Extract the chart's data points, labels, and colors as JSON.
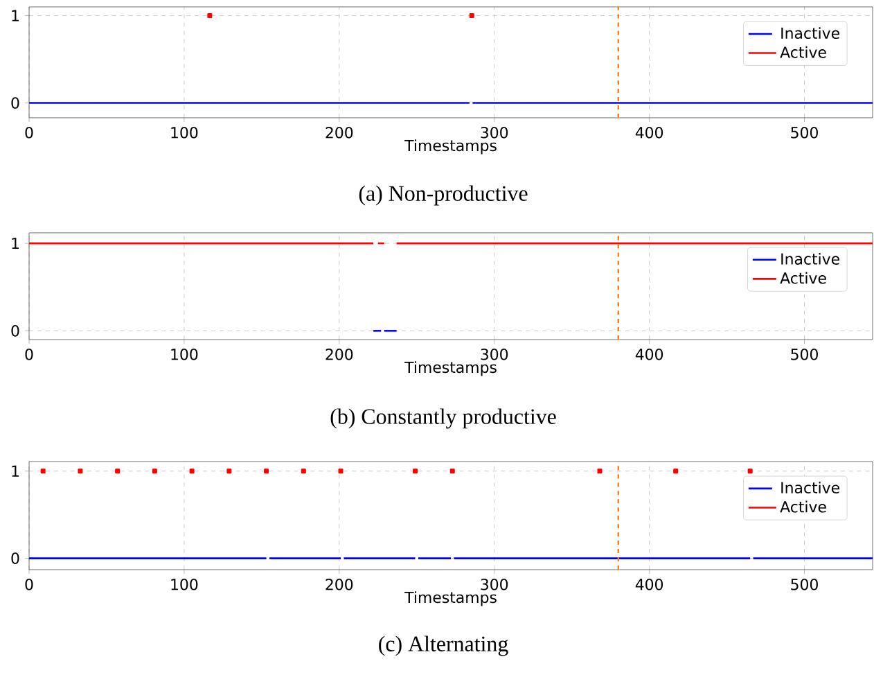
{
  "chart_data": [
    {
      "type": "line",
      "title": "(a) Non-productive",
      "xlabel": "Timestamps",
      "xlim": [
        0,
        544
      ],
      "xticks": [
        0,
        100,
        200,
        300,
        400,
        500
      ],
      "ylim": [
        -0.17,
        1.1
      ],
      "yticks": [
        0,
        1
      ],
      "grid": true,
      "legend": "top right",
      "series": [
        {
          "name": "Inactive",
          "color": "#0000ff",
          "x": [
            0,
            284
          ],
          "values": [
            0,
            0
          ]
        },
        {
          "name": "Active",
          "type": "scatter",
          "marker": "square",
          "color": "#ff0000",
          "x": [
            116.5,
            285.5
          ],
          "values": [
            1,
            1
          ]
        },
        {
          "color": "#0000ff",
          "x": [
            286,
            544
          ],
          "values": [
            0,
            0
          ]
        }
      ],
      "ref_lines": [
        {
          "axis": "x",
          "value": 380,
          "color": "#ff7f0e",
          "line_style": "dashed"
        }
      ]
    },
    {
      "type": "line",
      "title": "(b) Constantly productive",
      "xlabel": "Timestamps",
      "xlim": [
        0,
        544
      ],
      "xticks": [
        0,
        100,
        200,
        300,
        400,
        500
      ],
      "ylim": [
        -0.1,
        1.12
      ],
      "yticks": [
        0,
        1
      ],
      "grid": true,
      "legend": "top right",
      "series": [
        {
          "name": "Inactive",
          "color": "#0000ff",
          "x": [
            222,
            227
          ],
          "values": [
            0,
            0
          ]
        },
        {
          "name": "Active",
          "color": "#ff0000",
          "x": [
            0,
            222
          ],
          "values": [
            1,
            1
          ]
        },
        {
          "color": "#0000ff",
          "x": [
            229,
            237
          ],
          "values": [
            0,
            0
          ]
        },
        {
          "color": "#ff0000",
          "x": [
            225,
            229
          ],
          "values": [
            1,
            1
          ]
        },
        {
          "color": "#ff0000",
          "x": [
            237,
            544
          ],
          "values": [
            1,
            1
          ]
        }
      ],
      "ref_lines": [
        {
          "axis": "x",
          "value": 380,
          "color": "#ff7f0e",
          "line_style": "dashed"
        }
      ]
    },
    {
      "type": "line",
      "title": "(c) Alternating",
      "xlabel": "Timestamps",
      "xlim": [
        0,
        544
      ],
      "xticks": [
        0,
        100,
        200,
        300,
        400,
        500
      ],
      "ylim": [
        -0.13,
        1.11
      ],
      "yticks": [
        0,
        1
      ],
      "grid": true,
      "legend": "top right",
      "series": [
        {
          "name": "Inactive",
          "color": "#0000ff",
          "x": [
            0,
            153
          ],
          "values": [
            0,
            0
          ]
        },
        {
          "name": "Active",
          "type": "scatter",
          "marker": "square",
          "color": "#ff0000",
          "x": [
            9,
            33,
            57,
            81,
            105,
            129,
            153,
            177,
            201,
            249,
            273,
            368,
            417,
            465
          ],
          "values": [
            1,
            1,
            1,
            1,
            1,
            1,
            1,
            1,
            1,
            1,
            1,
            1,
            1,
            1
          ]
        },
        {
          "color": "#0000ff",
          "x": [
            155,
            201
          ],
          "values": [
            0,
            0
          ]
        },
        {
          "color": "#0000ff",
          "x": [
            203,
            249
          ],
          "values": [
            0,
            0
          ]
        },
        {
          "color": "#0000ff",
          "x": [
            251,
            272
          ],
          "values": [
            0,
            0
          ]
        },
        {
          "color": "#0000ff",
          "x": [
            274,
            465
          ],
          "values": [
            0,
            0
          ]
        },
        {
          "color": "#0000ff",
          "x": [
            467,
            544
          ],
          "values": [
            0,
            0
          ]
        }
      ],
      "ref_lines": [
        {
          "axis": "x",
          "value": 380,
          "color": "#ff7f0e",
          "line_style": "dashed"
        }
      ]
    }
  ]
}
